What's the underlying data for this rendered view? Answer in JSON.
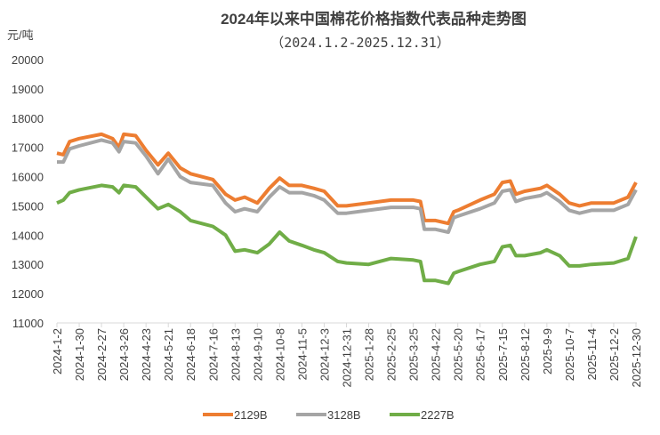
{
  "chart_data": {
    "type": "line",
    "title": "2024年以来中国棉花价格指数代表品种走势图",
    "subtitle": "（2024.1.2-2025.12.31）",
    "ylabel": "元/吨",
    "xlabel": "",
    "ylim": [
      11000,
      20000
    ],
    "yticks": [
      11000,
      12000,
      13000,
      14000,
      15000,
      16000,
      17000,
      18000,
      19000,
      20000
    ],
    "xticks": [
      "2024-1-2",
      "2024-1-30",
      "2024-2-27",
      "2024-3-26",
      "2024-4-23",
      "2024-5-21",
      "2024-6-18",
      "2024-7-16",
      "2024-8-13",
      "2024-9-10",
      "2024-10-8",
      "2024-11-5",
      "2024-12-3",
      "2024-12-31",
      "2025-1-28",
      "2025-2-25",
      "2025-3-25",
      "2025-4-22",
      "2025-5-20",
      "2025-6-17",
      "2025-7-15",
      "2025-8-12",
      "2025-9-9",
      "2025-10-7",
      "2025-11-4",
      "2025-12-2",
      "2025-12-30"
    ],
    "grid": false,
    "legend_position": "bottom",
    "x": [
      "2024-1-2",
      "2024-1-10",
      "2024-1-18",
      "2024-1-30",
      "2024-2-27",
      "2024-3-12",
      "2024-3-20",
      "2024-3-26",
      "2024-4-10",
      "2024-4-23",
      "2024-5-8",
      "2024-5-21",
      "2024-6-5",
      "2024-6-18",
      "2024-7-16",
      "2024-8-1",
      "2024-8-13",
      "2024-8-25",
      "2024-9-10",
      "2024-9-25",
      "2024-10-8",
      "2024-10-20",
      "2024-11-5",
      "2024-11-20",
      "2024-12-3",
      "2024-12-20",
      "2024-12-31",
      "2025-1-28",
      "2025-2-25",
      "2025-3-25",
      "2025-4-3",
      "2025-4-8",
      "2025-4-22",
      "2025-5-8",
      "2025-5-15",
      "2025-5-20",
      "2025-6-17",
      "2025-7-5",
      "2025-7-15",
      "2025-7-25",
      "2025-8-1",
      "2025-8-12",
      "2025-9-1",
      "2025-9-9",
      "2025-9-25",
      "2025-10-7",
      "2025-10-20",
      "2025-11-4",
      "2025-12-2",
      "2025-12-20",
      "2025-12-30"
    ],
    "series": [
      {
        "name": "2129B",
        "color": "#ed7d31",
        "values": [
          16800,
          16750,
          17200,
          17300,
          17450,
          17300,
          17000,
          17450,
          17400,
          16900,
          16400,
          16800,
          16300,
          16100,
          15900,
          15400,
          15200,
          15300,
          15100,
          15600,
          15950,
          15700,
          15700,
          15600,
          15500,
          15000,
          15000,
          15100,
          15200,
          15200,
          15150,
          14500,
          14500,
          14400,
          14800,
          14850,
          15200,
          15400,
          15800,
          15850,
          15400,
          15500,
          15600,
          15700,
          15400,
          15100,
          15000,
          15100,
          15100,
          15300,
          15800
        ]
      },
      {
        "name": "3128B",
        "color": "#a5a5a5",
        "values": [
          16500,
          16500,
          16950,
          17050,
          17250,
          17150,
          16850,
          17200,
          17150,
          16700,
          16100,
          16600,
          16000,
          15800,
          15700,
          15100,
          14800,
          14900,
          14800,
          15300,
          15650,
          15450,
          15450,
          15350,
          15200,
          14750,
          14750,
          14850,
          14950,
          14950,
          14900,
          14200,
          14200,
          14100,
          14600,
          14650,
          14900,
          15100,
          15500,
          15550,
          15150,
          15250,
          15350,
          15450,
          15150,
          14850,
          14750,
          14850,
          14850,
          15050,
          15550
        ]
      },
      {
        "name": "2227B",
        "color": "#70ad47",
        "values": [
          15100,
          15200,
          15450,
          15550,
          15700,
          15650,
          15450,
          15700,
          15650,
          15300,
          14900,
          15050,
          14800,
          14500,
          14300,
          14000,
          13450,
          13500,
          13400,
          13700,
          14100,
          13800,
          13650,
          13500,
          13400,
          13100,
          13050,
          13000,
          13200,
          13150,
          13100,
          12450,
          12450,
          12350,
          12700,
          12750,
          13000,
          13100,
          13600,
          13650,
          13300,
          13300,
          13400,
          13500,
          13300,
          12950,
          12950,
          13000,
          13050,
          13200,
          13950
        ]
      }
    ]
  }
}
